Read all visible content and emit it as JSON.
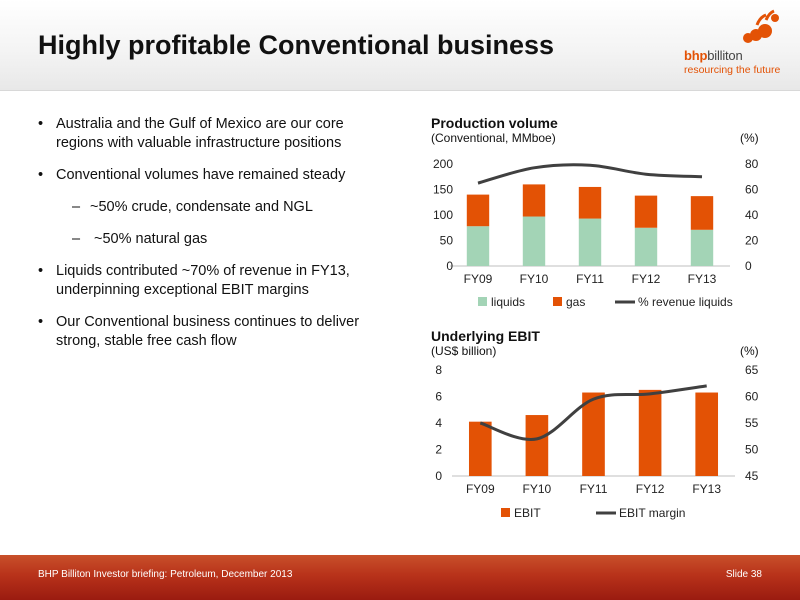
{
  "slide": {
    "title": "Highly profitable Conventional business",
    "logo_text_1": "bhp",
    "logo_text_2": "billiton",
    "logo_tagline": "resourcing the future"
  },
  "bullets": [
    {
      "text": "Australia and the Gulf of Mexico are our core regions with valuable infrastructure positions"
    },
    {
      "text": "Conventional volumes have remained steady"
    },
    {
      "sub": true,
      "text": "~50% crude, condensate and NGL"
    },
    {
      "sub": true,
      "text": " ~50% natural gas"
    },
    {
      "text": "Liquids contributed ~70% of revenue in FY13, underpinning exceptional EBIT margins"
    },
    {
      "text": "Our Conventional business continues to deliver strong, stable free cash flow"
    }
  ],
  "dash": "–",
  "footer": {
    "left": "BHP Billiton Investor briefing: Petroleum, December 2013",
    "right": "Slide 38"
  },
  "chart_data": [
    {
      "type": "bar",
      "stacked": true,
      "title": "Production volume",
      "subtitle": "(Conventional, MMboe)",
      "secondary_axis_label": "(%)",
      "categories": [
        "FY09",
        "FY10",
        "FY11",
        "FY12",
        "FY13"
      ],
      "series": [
        {
          "name": "liquids",
          "type": "bar",
          "axis": "left",
          "color": "#a3d4b6",
          "values": [
            78,
            97,
            93,
            75,
            71
          ]
        },
        {
          "name": "gas",
          "type": "bar",
          "axis": "left",
          "color": "#e35205",
          "values": [
            62,
            63,
            62,
            63,
            66
          ]
        },
        {
          "name": "% revenue liquids",
          "type": "line",
          "axis": "right",
          "color": "#404040",
          "values": [
            65,
            77,
            79,
            72,
            70
          ]
        }
      ],
      "ylim": [
        0,
        200
      ],
      "yticks": [
        0,
        50,
        100,
        150,
        200
      ],
      "y2lim": [
        0,
        80
      ],
      "y2ticks": [
        0,
        20,
        40,
        60,
        80
      ],
      "grid": false,
      "legend": "bottom"
    },
    {
      "type": "bar",
      "title": "Underlying EBIT",
      "subtitle": "(US$ billion)",
      "secondary_axis_label": "(%)",
      "categories": [
        "FY09",
        "FY10",
        "FY11",
        "FY12",
        "FY13"
      ],
      "series": [
        {
          "name": "EBIT",
          "type": "bar",
          "axis": "left",
          "color": "#e35205",
          "values": [
            4.1,
            4.6,
            6.3,
            6.5,
            6.3
          ]
        },
        {
          "name": "EBIT margin",
          "type": "line",
          "axis": "right",
          "color": "#404040",
          "values": [
            55,
            52,
            59.5,
            60.5,
            62
          ]
        }
      ],
      "ylim": [
        0,
        8
      ],
      "yticks": [
        0,
        2,
        4,
        6,
        8
      ],
      "y2lim": [
        45,
        65
      ],
      "y2ticks": [
        45,
        50,
        55,
        60,
        65
      ],
      "grid": false,
      "legend": "bottom"
    }
  ]
}
